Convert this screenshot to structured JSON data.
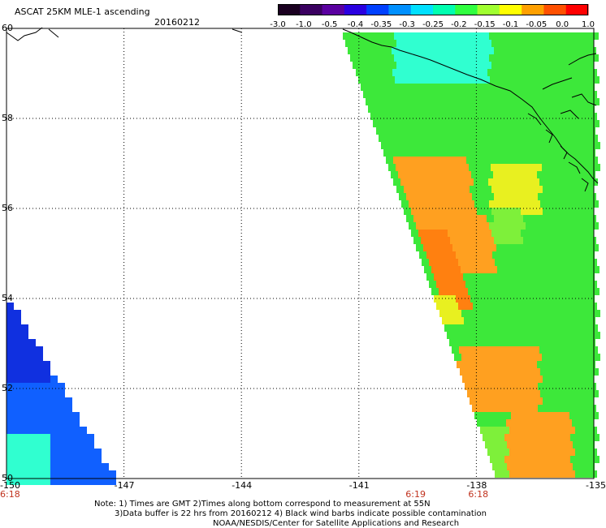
{
  "header": {
    "title": "ASCAT 25KM MLE-1 ascending",
    "date": "20160212"
  },
  "colorbar": {
    "labels": [
      "-3.0",
      "-1.0",
      "-0.5",
      "-0.4",
      "-0.35",
      "-0.3",
      "-0.25",
      "-0.2",
      "-0.15",
      "-0.1",
      "-0.05",
      "0.0",
      "1.0"
    ],
    "colors": [
      "#1a0020",
      "#3a0060",
      "#5a00a0",
      "#2a00e0",
      "#0040ff",
      "#0090ff",
      "#00e0ff",
      "#00ffb0",
      "#30ff40",
      "#a0ff30",
      "#ffff00",
      "#ffa000",
      "#ff5000",
      "#ff0000"
    ]
  },
  "axes": {
    "x_ticks": [
      "-150",
      "-147",
      "-144",
      "-141",
      "-138",
      "-135"
    ],
    "y_ticks": [
      "60",
      "58",
      "56",
      "54",
      "52",
      "50"
    ]
  },
  "time_labels": [
    {
      "text": "6:18",
      "lon": -150
    },
    {
      "text": "6:19",
      "lon": -139.6
    },
    {
      "text": "6:18",
      "lon": -138
    }
  ],
  "notes": {
    "line1": "Note: 1) Times are GMT 2)Times along bottom correspond to measurement at 55N",
    "line2": "3)Data buffer is 22 hrs from 20160212 4) Black wind barbs indicate possible contamination",
    "line3": "NOAA/NESDIS/Center for Satellite Applications and Research"
  },
  "map_colors": {
    "green": "#3de83a",
    "lightgreen": "#7ef03a",
    "yellow": "#e8f020",
    "orange": "#ffa020",
    "darkorange": "#ff8010",
    "cyan": "#30ffd0",
    "blue": "#1060ff",
    "darkblue": "#1030e0"
  }
}
